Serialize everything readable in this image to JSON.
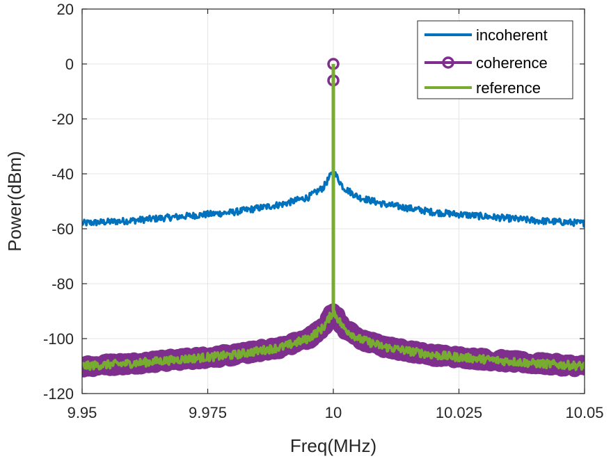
{
  "chart_data": {
    "type": "line",
    "title": "",
    "xlabel": "Freq(MHz)",
    "ylabel": "Power(dBm)",
    "xlim": [
      9.95,
      10.05
    ],
    "ylim": [
      -120,
      20
    ],
    "xticks": [
      9.95,
      9.975,
      10,
      10.025,
      10.05
    ],
    "xtick_labels": [
      "9.95",
      "9.975",
      "10",
      "10.025",
      "10.05"
    ],
    "yticks": [
      20,
      0,
      -20,
      -40,
      -60,
      -80,
      -100,
      -120
    ],
    "ytick_labels": [
      "20",
      "0",
      "-20",
      "-40",
      "-60",
      "-80",
      "-100",
      "-120"
    ],
    "grid": true,
    "legend_position": "top-right",
    "series": [
      {
        "name": "incoherent",
        "color": "#0072BD",
        "x": [
          9.95,
          9.96,
          9.97,
          9.98,
          9.99,
          9.995,
          9.998,
          10.0,
          10.002,
          10.005,
          10.01,
          10.02,
          10.03,
          10.04,
          10.05
        ],
        "values": [
          -58,
          -57,
          -55.5,
          -54,
          -51,
          -48.5,
          -45,
          -39,
          -45,
          -48.5,
          -51,
          -54,
          -55.5,
          -57,
          -58
        ],
        "noise_db": 1.2
      },
      {
        "name": "coherence",
        "color": "#7E2F8E",
        "marker": "circle",
        "x": [
          9.95,
          9.96,
          9.97,
          9.98,
          9.99,
          9.995,
          9.998,
          10.0,
          10.002,
          10.005,
          10.01,
          10.02,
          10.03,
          10.04,
          10.05
        ],
        "values": [
          -110,
          -109,
          -107.5,
          -106,
          -103,
          -100,
          -96,
          -90,
          -96,
          -100,
          -103,
          -106,
          -107.5,
          -109,
          -110
        ],
        "noise_db": 1.5,
        "peak_points": [
          {
            "x": 10.0,
            "y": 0
          },
          {
            "x": 10.0,
            "y": -6
          }
        ]
      },
      {
        "name": "reference",
        "color": "#77AC30",
        "x": [
          9.95,
          9.96,
          9.97,
          9.98,
          9.99,
          9.995,
          9.998,
          10.0,
          10.002,
          10.005,
          10.01,
          10.02,
          10.03,
          10.04,
          10.05
        ],
        "values": [
          -110,
          -109,
          -107.5,
          -106,
          -103,
          -100,
          -96,
          -90,
          -96,
          -100,
          -103,
          -106,
          -107.5,
          -109,
          -110
        ],
        "noise_db": 1.5,
        "peak": {
          "x": 10.0,
          "y": 0
        }
      }
    ]
  }
}
